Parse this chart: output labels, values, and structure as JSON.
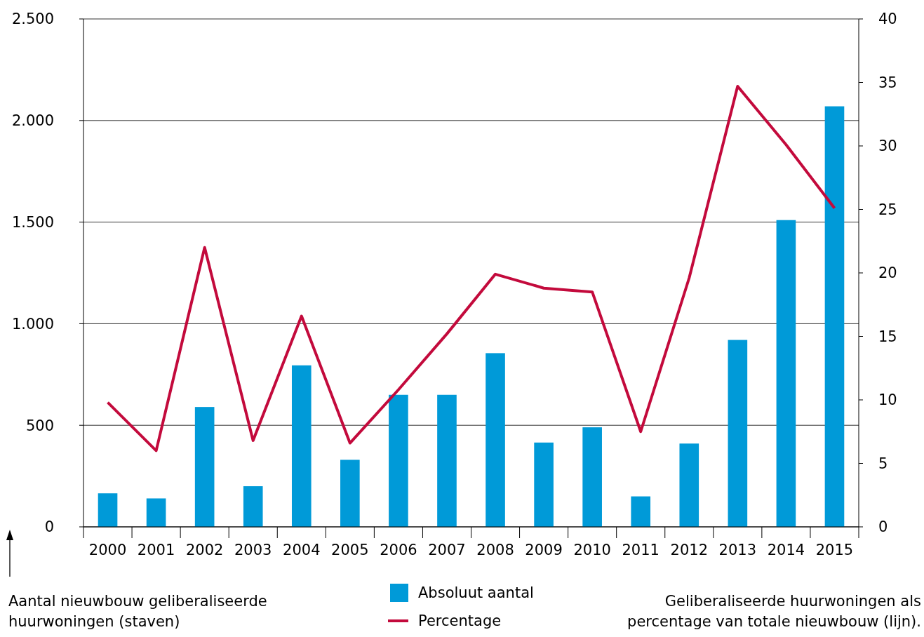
{
  "chart_data": {
    "type": "bar",
    "categories": [
      "2000",
      "2001",
      "2002",
      "2003",
      "2004",
      "2005",
      "2006",
      "2007",
      "2008",
      "2009",
      "2010",
      "2011",
      "2012",
      "2013",
      "2014",
      "2015"
    ],
    "series": [
      {
        "name": "Absoluut aantal",
        "color": "#009ad8",
        "values": [
          165,
          140,
          590,
          200,
          795,
          330,
          650,
          650,
          855,
          415,
          490,
          150,
          410,
          920,
          1510,
          2070
        ]
      },
      {
        "name": "Percentage",
        "type": "line",
        "axis": "y2",
        "color": "#c30a3c",
        "values": [
          9.8,
          6.0,
          22.0,
          6.8,
          16.6,
          6.6,
          10.8,
          15.2,
          19.9,
          18.8,
          18.5,
          7.5,
          19.6,
          34.7,
          30.1,
          25.1
        ]
      }
    ],
    "ylim": [
      0,
      2500
    ],
    "yticks": [
      {
        "value": 0,
        "label": "0"
      },
      {
        "value": 500,
        "label": "500"
      },
      {
        "value": 1000,
        "label": "1.000"
      },
      {
        "value": 1500,
        "label": "1.500"
      },
      {
        "value": 2000,
        "label": "2.000"
      },
      {
        "value": 2500,
        "label": "2.500"
      }
    ],
    "y2lim": [
      0,
      40
    ],
    "y2ticks": [
      0,
      5,
      10,
      15,
      20,
      25,
      30,
      35,
      40
    ],
    "ylabel": "Aantal nieuwbouw geliberaliseerde huurwoningen (staven)",
    "annotations": [
      "Geliberaliseerde huurwoningen als percentage van totale nieuwbouw (lijn)."
    ],
    "grid": "y",
    "legend": "bottom",
    "marker": "none",
    "line_style": "solid"
  }
}
